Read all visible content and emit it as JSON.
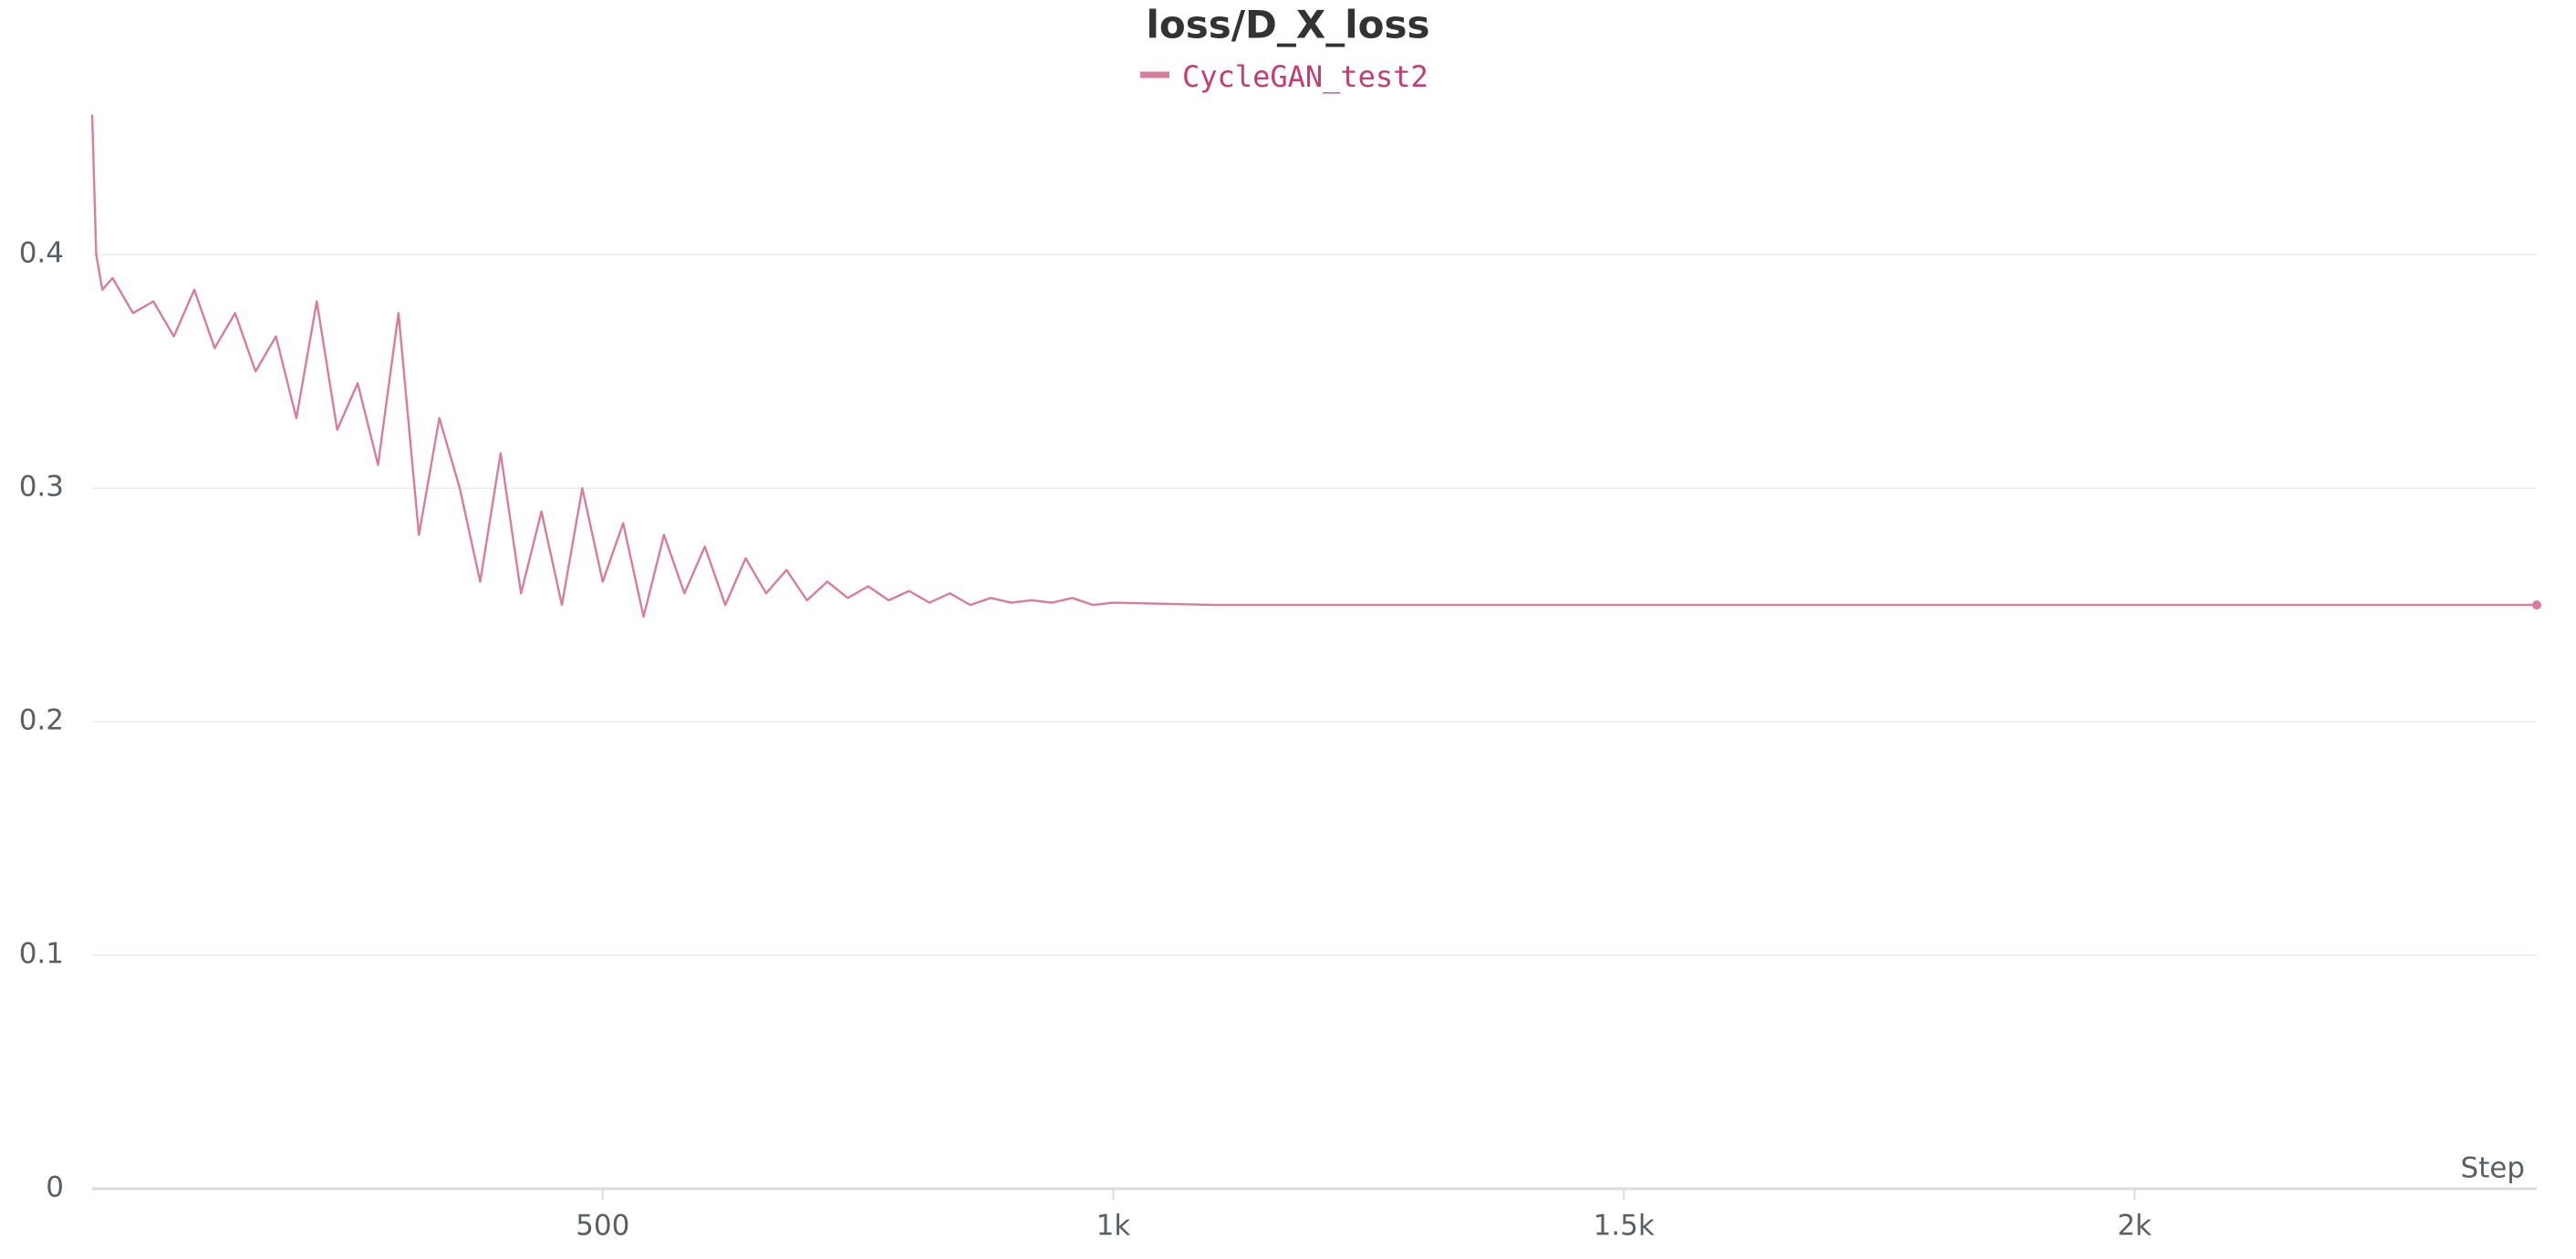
{
  "chart_data": {
    "type": "line",
    "title": "loss/D_X_loss",
    "x_label": "Step",
    "x": [
      0,
      4,
      10,
      20,
      40,
      60,
      80,
      100,
      120,
      140,
      160,
      180,
      200,
      220,
      240,
      260,
      280,
      300,
      320,
      340,
      360,
      380,
      400,
      420,
      440,
      460,
      480,
      500,
      520,
      540,
      560,
      580,
      600,
      620,
      640,
      660,
      680,
      700,
      720,
      740,
      760,
      780,
      800,
      820,
      840,
      860,
      880,
      900,
      920,
      940,
      960,
      980,
      1000,
      1100,
      1200,
      1300,
      1400,
      1500,
      1600,
      1700,
      1800,
      1900,
      2000,
      2100,
      2200,
      2300,
      2394
    ],
    "series": [
      {
        "name": "CycleGAN_test2",
        "color": "#d97c9e",
        "legend_color": "#c73a74",
        "values": [
          0.46,
          0.4,
          0.385,
          0.39,
          0.375,
          0.38,
          0.365,
          0.385,
          0.36,
          0.375,
          0.35,
          0.365,
          0.33,
          0.38,
          0.325,
          0.345,
          0.31,
          0.375,
          0.28,
          0.33,
          0.3,
          0.26,
          0.315,
          0.255,
          0.29,
          0.25,
          0.3,
          0.26,
          0.285,
          0.245,
          0.28,
          0.255,
          0.275,
          0.25,
          0.27,
          0.255,
          0.265,
          0.252,
          0.26,
          0.253,
          0.258,
          0.252,
          0.256,
          0.251,
          0.255,
          0.25,
          0.253,
          0.251,
          0.252,
          0.251,
          0.253,
          0.25,
          0.251,
          0.25,
          0.25,
          0.25,
          0.25,
          0.25,
          0.25,
          0.25,
          0.25,
          0.25,
          0.25,
          0.25,
          0.25,
          0.25,
          0.25
        ]
      }
    ],
    "xlim": [
      0,
      2394
    ],
    "ylim": [
      0,
      0.47
    ],
    "xticks": [
      500,
      {
        "value": 1000,
        "label": "1k"
      },
      {
        "value": 1500,
        "label": "1.5k"
      },
      {
        "value": 2000,
        "label": "2k"
      }
    ],
    "yticks": [
      0,
      0.1,
      0.2,
      0.3,
      0.4
    ],
    "grid": true
  }
}
